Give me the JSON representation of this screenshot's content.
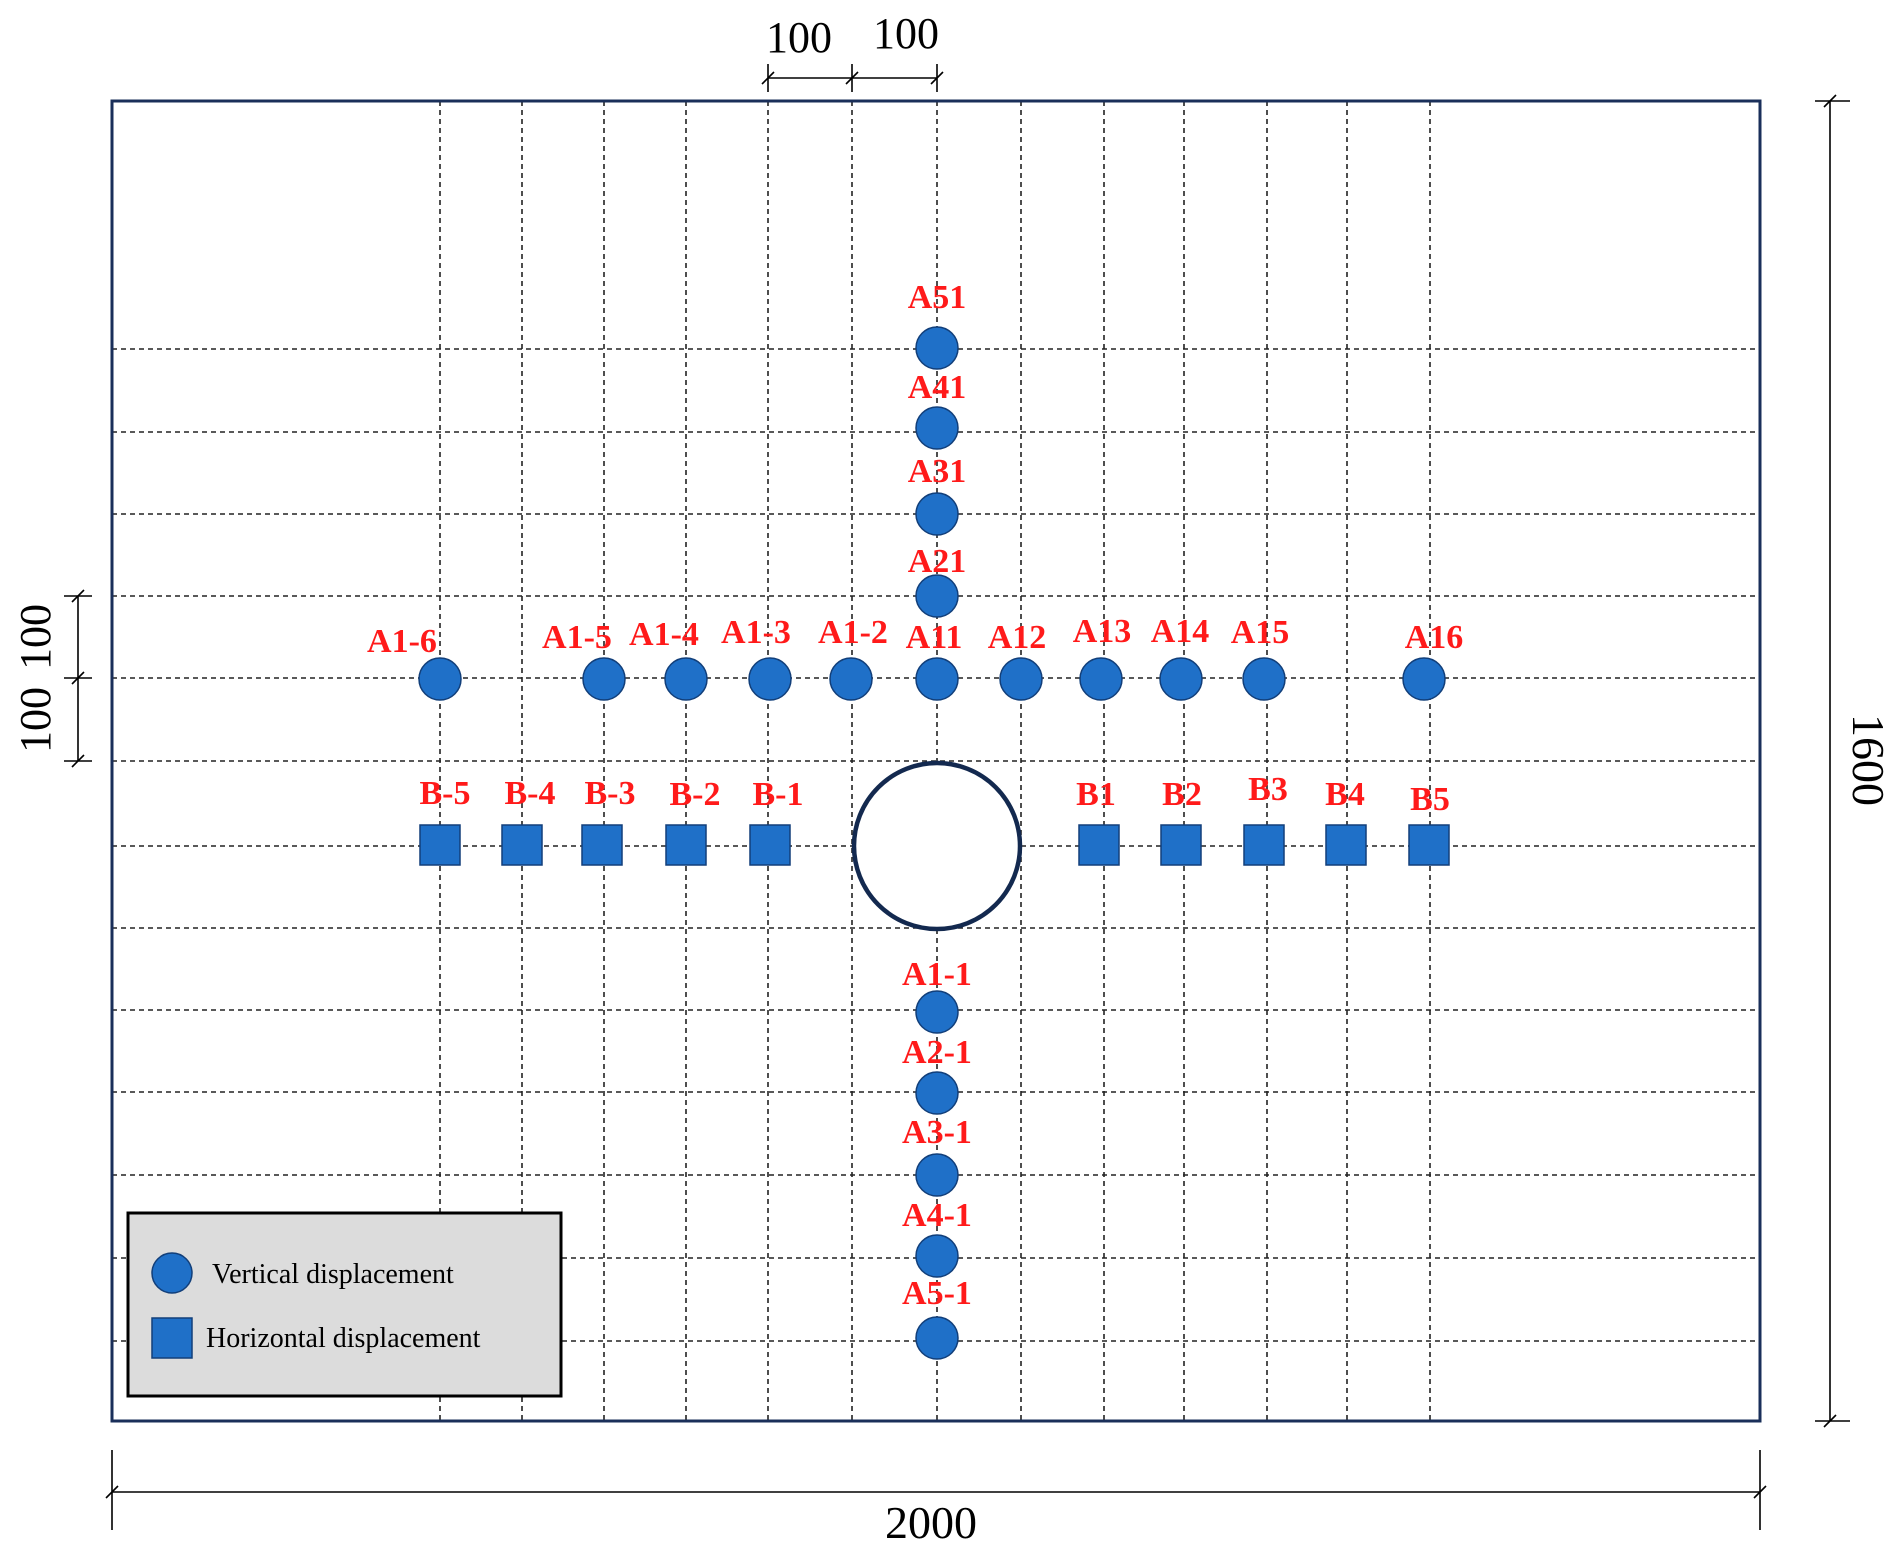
{
  "dimensions": {
    "top_left": "100",
    "top_right": "100",
    "left_upper": "100",
    "left_lower": "100",
    "right": "1600",
    "bottom": "2000"
  },
  "legend": {
    "vertical_label": "Vertical displacement",
    "horizontal_label": "Horizontal displacement",
    "vertical_marker": "circle",
    "horizontal_marker": "square"
  },
  "colors": {
    "marker_fill": "#1f70c8",
    "marker_stroke": "#123f7a",
    "label_red": "#ff1a1a",
    "frame": "#1a2f5a",
    "grid": "#222222",
    "legend_bg": "#dcdcdc",
    "hole_stroke": "#13294f"
  },
  "points": {
    "vertical_above": [
      "A51",
      "A41",
      "A31",
      "A21"
    ],
    "row_a": [
      "A1-6",
      "A1-5",
      "A1-4",
      "A1-3",
      "A1-2",
      "A11",
      "A12",
      "A13",
      "A14",
      "A15",
      "A16"
    ],
    "row_b": [
      "B-5",
      "B-4",
      "B-3",
      "B-2",
      "B-1",
      "B1",
      "B2",
      "B3",
      "B4",
      "B5"
    ],
    "vertical_below": [
      "A1-1",
      "A2-1",
      "A3-1",
      "A4-1",
      "A5-1"
    ]
  }
}
